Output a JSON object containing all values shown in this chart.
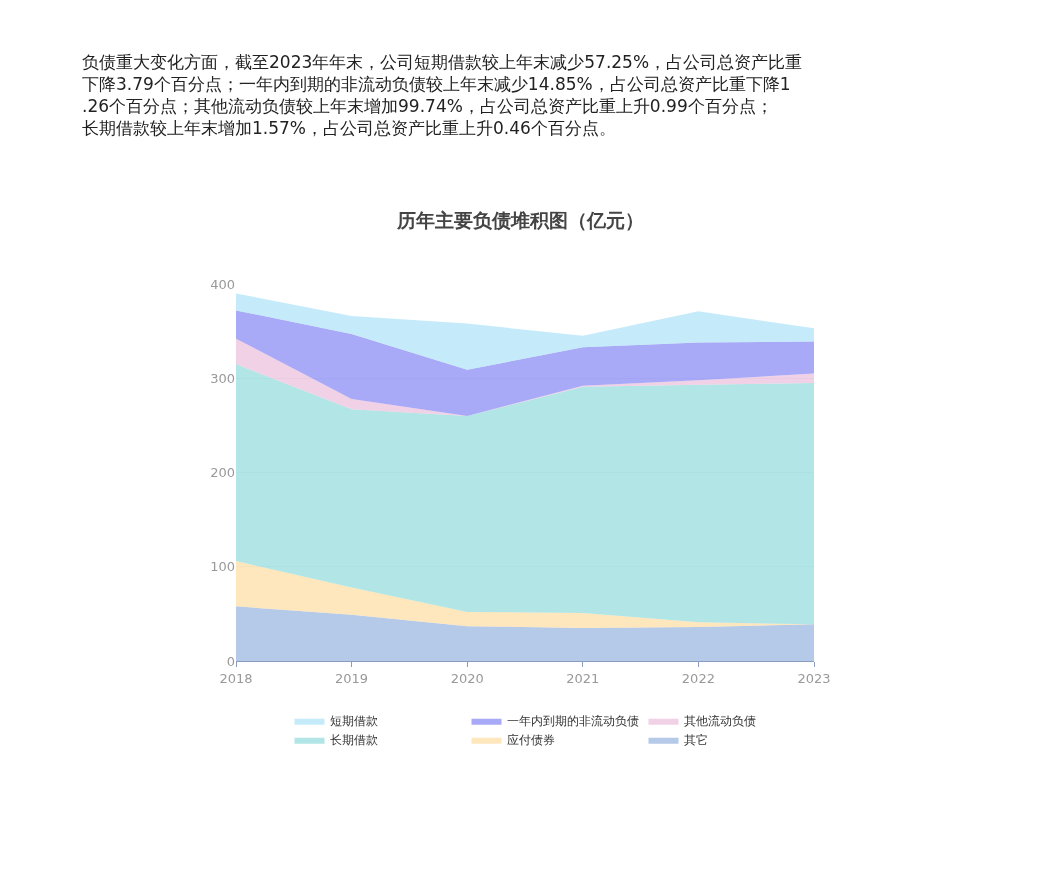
{
  "chart_data": {
    "type": "area",
    "stacked": true,
    "subtitle": "负债重大变化方面，截至2023年年末，公司短期借款较上年末减少57.25%，占公司总资产比重下降3.79个百分点；一年内到期的非流动负债较上年末减少14.85%，占公司总资产比重下降1.26个百分点；其他流动负债较上年末增加99.74%，占公司总资产比重上升0.99个百分点；长期借款较上年末增加1.57%，占公司总资产比重上升0.46个百分点。",
    "title": "历年主要负债堆积图（亿元）",
    "categories": [
      "2018",
      "2019",
      "2020",
      "2021",
      "2022",
      "2023"
    ],
    "series": [
      {
        "name": "其它",
        "color": "#8eaedb",
        "values": [
          58,
          49,
          37,
          35,
          36,
          39
        ]
      },
      {
        "name": "应付债券",
        "color": "#fdd89a",
        "values": [
          48,
          29,
          15,
          16,
          5,
          0
        ]
      },
      {
        "name": "长期借款",
        "color": "#88d8d8",
        "values": [
          209,
          189,
          208,
          240,
          252,
          256
        ]
      },
      {
        "name": "其他流动负债",
        "color": "#e8b8d8",
        "values": [
          27,
          11,
          0,
          1,
          5,
          10
        ]
      },
      {
        "name": "一年内到期的非流动负债",
        "color": "#7b7cf3",
        "values": [
          30,
          69,
          49,
          41,
          40,
          34
        ]
      },
      {
        "name": "短期借款",
        "color": "#a6e0f8",
        "values": [
          18,
          19,
          49,
          12,
          33,
          14
        ]
      }
    ],
    "ylim": [
      0,
      400
    ],
    "yticks": [
      0,
      100,
      200,
      300,
      400
    ],
    "grid": "y",
    "legend": "bottom"
  }
}
